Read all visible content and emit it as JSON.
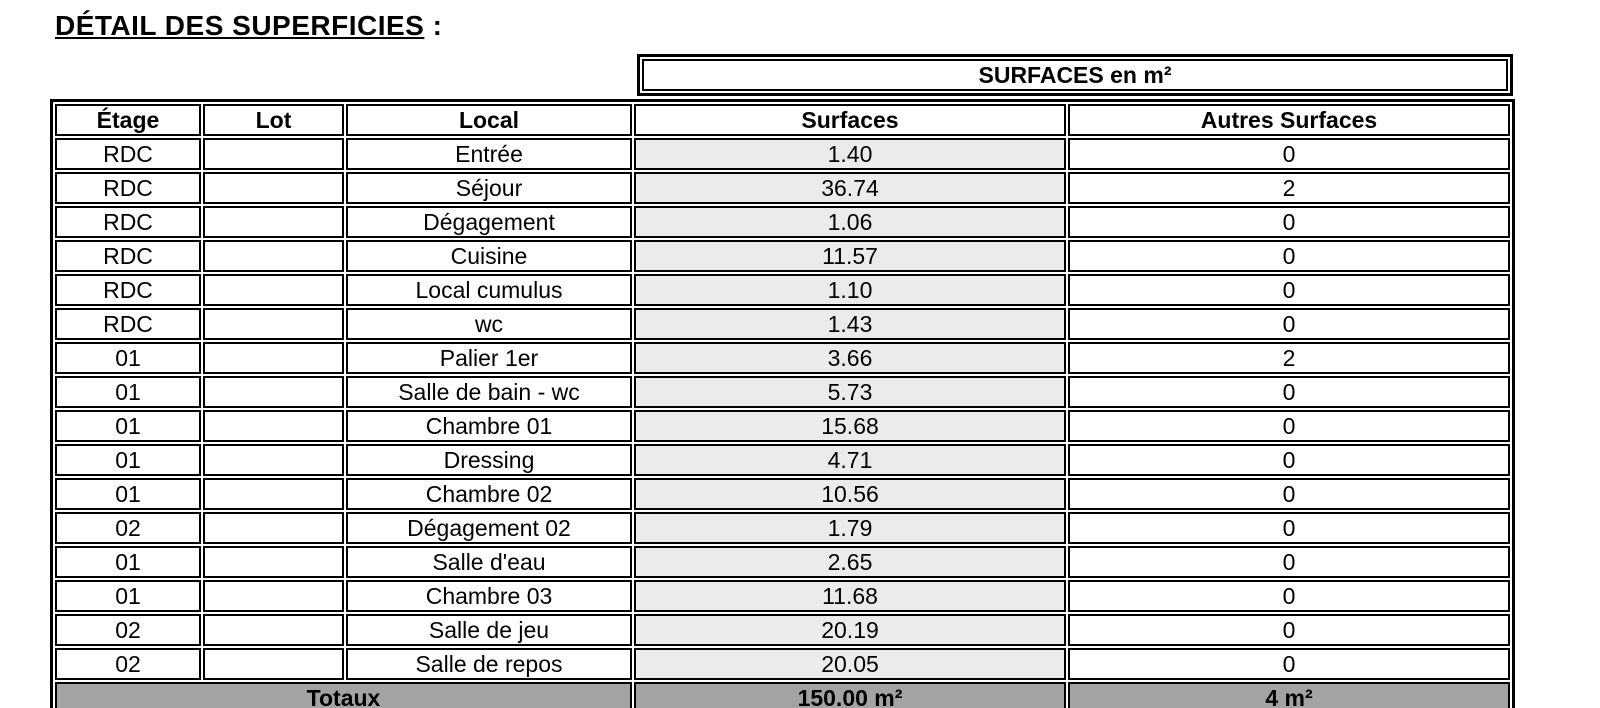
{
  "title": {
    "text": "DÉTAIL DES SUPERFICIES",
    "suffix": " :"
  },
  "table": {
    "banner": "SURFACES en m²",
    "headers": {
      "etage": "Étage",
      "lot": "Lot",
      "local": "Local",
      "surfaces": "Surfaces",
      "autres": "Autres Surfaces"
    },
    "rows": [
      {
        "etage": "RDC",
        "lot": "",
        "local": "Entrée",
        "surfaces": "1.40",
        "autres": "0"
      },
      {
        "etage": "RDC",
        "lot": "",
        "local": "Séjour",
        "surfaces": "36.74",
        "autres": "2"
      },
      {
        "etage": "RDC",
        "lot": "",
        "local": "Dégagement",
        "surfaces": "1.06",
        "autres": "0"
      },
      {
        "etage": "RDC",
        "lot": "",
        "local": "Cuisine",
        "surfaces": "11.57",
        "autres": "0"
      },
      {
        "etage": "RDC",
        "lot": "",
        "local": "Local cumulus",
        "surfaces": "1.10",
        "autres": "0"
      },
      {
        "etage": "RDC",
        "lot": "",
        "local": "wc",
        "surfaces": "1.43",
        "autres": "0"
      },
      {
        "etage": "01",
        "lot": "",
        "local": "Palier 1er",
        "surfaces": "3.66",
        "autres": "2"
      },
      {
        "etage": "01",
        "lot": "",
        "local": "Salle de bain - wc",
        "surfaces": "5.73",
        "autres": "0"
      },
      {
        "etage": "01",
        "lot": "",
        "local": "Chambre 01",
        "surfaces": "15.68",
        "autres": "0"
      },
      {
        "etage": "01",
        "lot": "",
        "local": "Dressing",
        "surfaces": "4.71",
        "autres": "0"
      },
      {
        "etage": "01",
        "lot": "",
        "local": "Chambre 02",
        "surfaces": "10.56",
        "autres": "0"
      },
      {
        "etage": "02",
        "lot": "",
        "local": "Dégagement 02",
        "surfaces": "1.79",
        "autres": "0"
      },
      {
        "etage": "01",
        "lot": "",
        "local": "Salle d'eau",
        "surfaces": "2.65",
        "autres": "0"
      },
      {
        "etage": "01",
        "lot": "",
        "local": "Chambre 03",
        "surfaces": "11.68",
        "autres": "0"
      },
      {
        "etage": "02",
        "lot": "",
        "local": "Salle de jeu",
        "surfaces": "20.19",
        "autres": "0"
      },
      {
        "etage": "02",
        "lot": "",
        "local": "Salle de repos",
        "surfaces": "20.05",
        "autres": "0"
      }
    ],
    "totals": {
      "label": "Totaux",
      "surfaces": "150.00 m²",
      "autres": "4 m²"
    }
  },
  "colors": {
    "background": "#ffffff",
    "border": "#000000",
    "header_fill": "#ebebeb",
    "surfaces_column_fill": "#ebebeb",
    "totals_fill": "#a3a3a3"
  }
}
